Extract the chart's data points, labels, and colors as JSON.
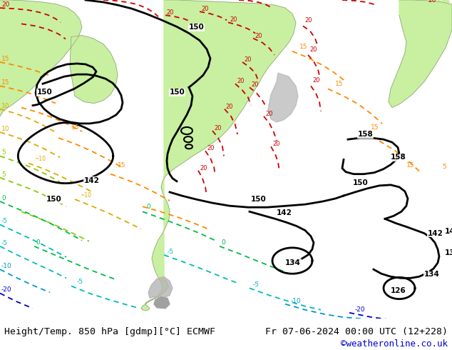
{
  "title_left": "Height/Temp. 850 hPa [gdmp][°C] ECMWF",
  "title_right": "Fr 07-06-2024 00:00 UTC (12+228)",
  "credit": "©weatheronline.co.uk",
  "fig_width": 6.34,
  "fig_height": 4.9,
  "dpi": 100,
  "bottom_bar_color": "#ffffff",
  "bottom_text_color": "#000000",
  "credit_color": "#0000cc",
  "font_size_title": 9.5,
  "font_size_credit": 9,
  "bg_map_color": "#d2d2d2",
  "land_green": "#c8f0a0",
  "land_gray": "#b4b4b4",
  "land_dark_gray": "#909090",
  "ocean_color": "#d2d2d2",
  "contour_geop_color": "#000000",
  "contour_temp_20_color": "#cc0000",
  "contour_temp_15_color": "#ff8800",
  "contour_temp_10_color": "#ddaa00",
  "contour_temp_5_color": "#88cc00",
  "contour_temp_0_color": "#00bb44",
  "contour_temp_neg5_color": "#00bbbb",
  "contour_temp_neg10_color": "#0099cc",
  "contour_temp_neg20_color": "#0000cc",
  "contour_lw": 1.3,
  "geop_lw": 2.0
}
